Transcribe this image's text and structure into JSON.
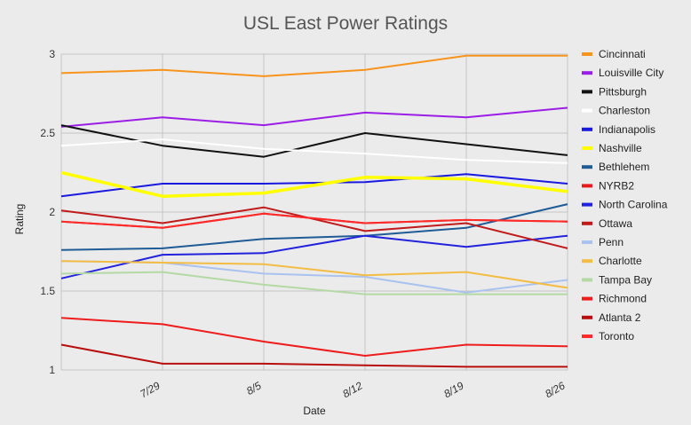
{
  "chart_data": {
    "type": "line",
    "title": "USL East Power Ratings",
    "xlabel": "Date",
    "ylabel": "Rating",
    "x": [
      0,
      1,
      2,
      3,
      4,
      5
    ],
    "xtick_labels": [
      "",
      "7/29",
      "8/5",
      "8/12",
      "8/19",
      "8/26"
    ],
    "ylim": [
      1,
      3
    ],
    "yticks": [
      "1",
      "1.5",
      "2",
      "2.5",
      "3"
    ],
    "grid": true,
    "legend_position": "right",
    "series": [
      {
        "name": "Cincinnati",
        "color": "#f7941d",
        "values": [
          2.88,
          2.9,
          2.86,
          2.9,
          2.99,
          2.99
        ]
      },
      {
        "name": "Louisville City",
        "color": "#9b1ee6",
        "values": [
          2.54,
          2.6,
          2.55,
          2.63,
          2.6,
          2.66
        ]
      },
      {
        "name": "Pittsburgh",
        "color": "#111111",
        "values": [
          2.55,
          2.42,
          2.35,
          2.5,
          2.43,
          2.36
        ]
      },
      {
        "name": "Charleston",
        "color": "#ffffff",
        "values": [
          2.42,
          2.46,
          2.4,
          2.37,
          2.33,
          2.31
        ]
      },
      {
        "name": "Indianapolis",
        "color": "#1a1adf",
        "values": [
          2.1,
          2.18,
          2.18,
          2.19,
          2.24,
          2.18
        ]
      },
      {
        "name": "Nashville",
        "color": "#ffff00",
        "values": [
          2.25,
          2.1,
          2.12,
          2.22,
          2.21,
          2.13
        ]
      },
      {
        "name": "Bethlehem",
        "color": "#1f5c96",
        "values": [
          1.76,
          1.77,
          1.83,
          1.85,
          1.9,
          2.05
        ]
      },
      {
        "name": "NYRB2",
        "color": "#e61b1b",
        "values": [
          1.94,
          1.9,
          1.99,
          1.93,
          1.95,
          1.94
        ]
      },
      {
        "name": "North Carolina",
        "color": "#2222dd",
        "values": [
          1.58,
          1.73,
          1.74,
          1.85,
          1.78,
          1.85
        ]
      },
      {
        "name": "Ottawa",
        "color": "#c01a1a",
        "values": [
          2.01,
          1.93,
          2.03,
          1.88,
          1.93,
          1.77
        ]
      },
      {
        "name": "Penn",
        "color": "#a9c3ee",
        "values": [
          1.69,
          1.68,
          1.61,
          1.59,
          1.49,
          1.57
        ]
      },
      {
        "name": "Charlotte",
        "color": "#f3bd45",
        "values": [
          1.69,
          1.68,
          1.67,
          1.6,
          1.62,
          1.52
        ]
      },
      {
        "name": "Tampa Bay",
        "color": "#b5d9a5",
        "values": [
          1.61,
          1.62,
          1.54,
          1.48,
          1.48,
          1.48
        ]
      },
      {
        "name": "Richmond",
        "color": "#ee1c1c",
        "values": [
          1.33,
          1.29,
          1.18,
          1.09,
          1.16,
          1.15
        ]
      },
      {
        "name": "Atlanta 2",
        "color": "#b80e0e",
        "values": [
          1.16,
          1.04,
          1.04,
          1.03,
          1.02,
          1.02
        ]
      },
      {
        "name": "Toronto",
        "color": "#ff2a2a",
        "values": [
          1.94,
          1.9,
          1.99,
          1.93,
          1.95,
          1.94
        ]
      }
    ]
  }
}
